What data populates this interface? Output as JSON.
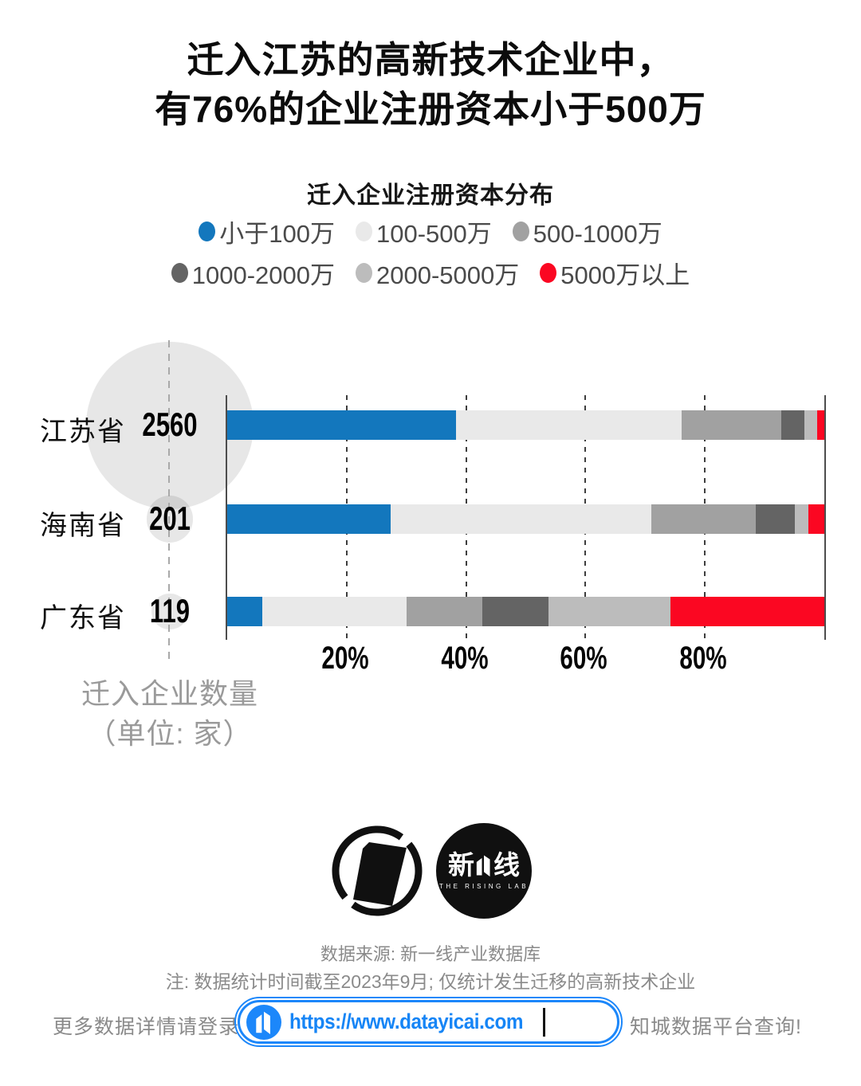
{
  "title": {
    "line1": "迁入江苏的高新技术企业中，",
    "line2": "有76%的企业注册资本小于500万"
  },
  "subtitle": "迁入企业注册资本分布",
  "chart_data": {
    "type": "bar",
    "orientation": "horizontal",
    "stacked": true,
    "title": "迁入企业注册资本分布",
    "categories": [
      "江苏省",
      "海南省",
      "广东省"
    ],
    "counts": [
      2560,
      201,
      119
    ],
    "series": [
      {
        "name": "小于100万",
        "color": "#1377bd",
        "values": [
          38.3,
          27.4,
          5.9
        ]
      },
      {
        "name": "100-500万",
        "color": "#e9e9e9",
        "values": [
          37.8,
          43.6,
          24.2
        ]
      },
      {
        "name": "500-1000万",
        "color": "#a1a1a1",
        "values": [
          16.7,
          17.5,
          12.6
        ]
      },
      {
        "name": "1000-2000万",
        "color": "#646464",
        "values": [
          3.8,
          6.5,
          11.1
        ]
      },
      {
        "name": "2000-5000万",
        "color": "#bcbcbc",
        "values": [
          2.2,
          2.4,
          20.5
        ]
      },
      {
        "name": "5000万以上",
        "color": "#fb0722",
        "values": [
          1.2,
          2.6,
          25.7
        ]
      }
    ],
    "x_ticks": [
      "20%",
      "40%",
      "60%",
      "80%"
    ],
    "x_tick_positions": [
      20,
      40,
      60,
      80
    ],
    "xlim": [
      0,
      100
    ],
    "grid": "dashed-vertical",
    "legend_position": "top",
    "unit_label_line1": "迁入企业数量",
    "unit_label_line2": "（单位: 家）"
  },
  "footer": {
    "source": "数据来源: 新一线产业数据库",
    "note": "注: 数据统计时间截至2023年9月; 仅统计发生迁移的高新技术企业",
    "cta_left": "更多数据详情请登录",
    "url": "https://www.datayicai.com",
    "cta_right": "知城数据平台查询!",
    "logo_right_zh": "新一线",
    "logo_right_zh_left": "新",
    "logo_right_zh_right": "线",
    "logo_right_en": "THE RISING LAB"
  },
  "colors": {
    "accent_blue": "#1377bd",
    "accent_red": "#fb0722",
    "url_blue": "#1c87fa",
    "axis_line": "#4d4d4d",
    "gridline": "#3e3e3e",
    "bubble_fill": "rgba(0,0,0,0.095)",
    "muted_text": "#8a8a8a"
  }
}
